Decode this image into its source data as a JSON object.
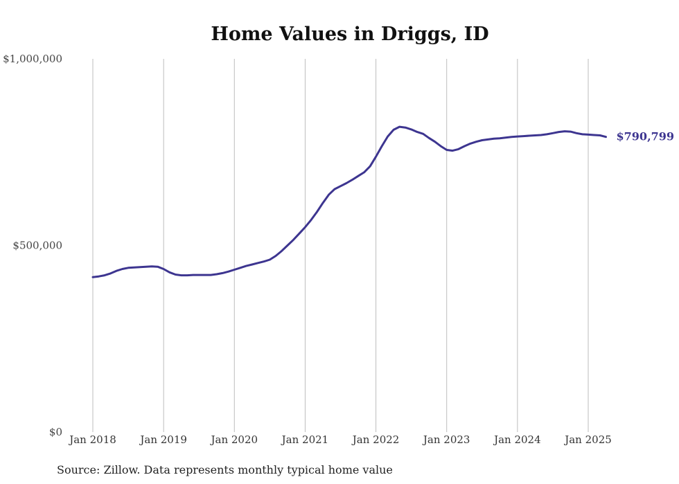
{
  "chart_data": {
    "type": "line",
    "title": "Home Values in Driggs, ID",
    "xlabel": "",
    "ylabel": "",
    "ylim": [
      0,
      1000000
    ],
    "y_ticks": [
      {
        "value": 0,
        "label": "$0"
      },
      {
        "value": 500000,
        "label": "$500,000"
      },
      {
        "value": 1000000,
        "label": "$1,000,000"
      }
    ],
    "x_ticks": [
      {
        "date": "2018-01",
        "label": "Jan 2018"
      },
      {
        "date": "2019-01",
        "label": "Jan 2019"
      },
      {
        "date": "2020-01",
        "label": "Jan 2020"
      },
      {
        "date": "2021-01",
        "label": "Jan 2021"
      },
      {
        "date": "2022-01",
        "label": "Jan 2022"
      },
      {
        "date": "2023-01",
        "label": "Jan 2023"
      },
      {
        "date": "2024-01",
        "label": "Jan 2024"
      },
      {
        "date": "2025-01",
        "label": "Jan 2025"
      }
    ],
    "grid": "vertical",
    "line_color": "#3d3590",
    "end_label": "$790,799",
    "series": [
      {
        "x": [
          "2018-01",
          "2018-02",
          "2018-03",
          "2018-04",
          "2018-05",
          "2018-06",
          "2018-07",
          "2018-08",
          "2018-09",
          "2018-10",
          "2018-11",
          "2018-12",
          "2019-01",
          "2019-02",
          "2019-03",
          "2019-04",
          "2019-05",
          "2019-06",
          "2019-07",
          "2019-08",
          "2019-09",
          "2019-10",
          "2019-11",
          "2019-12",
          "2020-01",
          "2020-02",
          "2020-03",
          "2020-04",
          "2020-05",
          "2020-06",
          "2020-07",
          "2020-08",
          "2020-09",
          "2020-10",
          "2020-11",
          "2020-12",
          "2021-01",
          "2021-02",
          "2021-03",
          "2021-04",
          "2021-05",
          "2021-06",
          "2021-07",
          "2021-08",
          "2021-09",
          "2021-10",
          "2021-11",
          "2021-12",
          "2022-01",
          "2022-02",
          "2022-03",
          "2022-04",
          "2022-05",
          "2022-06",
          "2022-07",
          "2022-08",
          "2022-09",
          "2022-10",
          "2022-11",
          "2022-12",
          "2023-01",
          "2023-02",
          "2023-03",
          "2023-04",
          "2023-05",
          "2023-06",
          "2023-07",
          "2023-08",
          "2023-09",
          "2023-10",
          "2023-11",
          "2023-12",
          "2024-01",
          "2024-02",
          "2024-03",
          "2024-04",
          "2024-05",
          "2024-06",
          "2024-07",
          "2024-08",
          "2024-09",
          "2024-10",
          "2024-11",
          "2024-12",
          "2025-01",
          "2025-02",
          "2025-03",
          "2025-04"
        ],
        "values": [
          415000,
          417000,
          420000,
          425000,
          432000,
          437000,
          440000,
          441000,
          442000,
          443000,
          444000,
          443000,
          437000,
          428000,
          422000,
          420000,
          420000,
          421000,
          421000,
          421000,
          421000,
          423000,
          426000,
          430000,
          435000,
          440000,
          445000,
          449000,
          453000,
          457000,
          462000,
          472000,
          485000,
          500000,
          515000,
          532000,
          549000,
          568000,
          590000,
          614000,
          636000,
          651000,
          659000,
          667000,
          676000,
          686000,
          696000,
          712000,
          738000,
          766000,
          792000,
          810000,
          818000,
          816000,
          811000,
          804000,
          799000,
          788000,
          778000,
          766000,
          756000,
          754000,
          758000,
          766000,
          773000,
          778000,
          782000,
          784000,
          786000,
          787000,
          789000,
          791000,
          792000,
          793000,
          794000,
          795000,
          796000,
          798000,
          801000,
          804000,
          806000,
          805000,
          801000,
          798000,
          797000,
          796000,
          795000,
          791000
        ]
      }
    ],
    "source": "Source: Zillow. Data represents monthly typical home value"
  }
}
